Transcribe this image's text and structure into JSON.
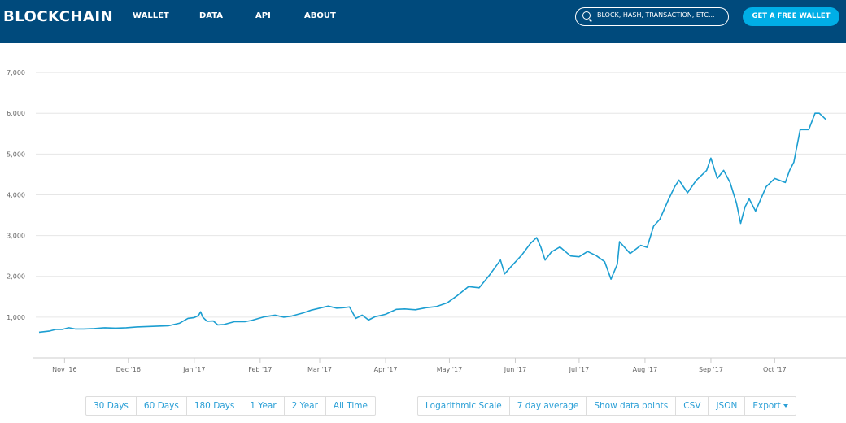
{
  "header": {
    "logo": "BLOCKCHAIN",
    "nav": [
      "WALLET",
      "DATA",
      "API",
      "ABOUT"
    ],
    "search_placeholder": "BLOCK, HASH, TRANSACTION, ETC...",
    "cta_label": "GET A FREE WALLET"
  },
  "colors": {
    "header_bg": "#004a7c",
    "accent": "#00aee6",
    "line": "#1c9ed1"
  },
  "range_buttons": [
    "30 Days",
    "60 Days",
    "180 Days",
    "1 Year",
    "2 Year",
    "All Time"
  ],
  "option_buttons": [
    "Logarithmic Scale",
    "7 day average",
    "Show data points",
    "CSV",
    "JSON",
    "Export"
  ],
  "chart_data": {
    "type": "line",
    "title": "",
    "xlabel": "",
    "ylabel": "",
    "ylim": [
      0,
      7500
    ],
    "yticks": [
      1000,
      2000,
      3000,
      4000,
      5000,
      6000,
      7000
    ],
    "ytick_labels": [
      "1,000",
      "2,000",
      "3,000",
      "4,000",
      "5,000",
      "6,000",
      "7,000"
    ],
    "xticks": [
      "2016-11-01",
      "2016-12-01",
      "2017-01-01",
      "2017-02-01",
      "2017-03-01",
      "2017-04-01",
      "2017-05-01",
      "2017-06-01",
      "2017-07-01",
      "2017-08-01",
      "2017-09-01",
      "2017-10-01"
    ],
    "xtick_labels": [
      "Nov '16",
      "Dec '16",
      "Jan '17",
      "Feb '17",
      "Mar '17",
      "Apr '17",
      "May '17",
      "Jun '17",
      "Jul '17",
      "Aug '17",
      "Sep '17",
      "Oct '17"
    ],
    "xlim": [
      "2016-10-20",
      "2017-11-02"
    ],
    "grid": true,
    "series": [
      {
        "points": [
          [
            "2016-10-20",
            630
          ],
          [
            "2016-10-25",
            660
          ],
          [
            "2016-10-28",
            700
          ],
          [
            "2016-10-31",
            700
          ],
          [
            "2016-11-03",
            740
          ],
          [
            "2016-11-06",
            710
          ],
          [
            "2016-11-10",
            710
          ],
          [
            "2016-11-15",
            720
          ],
          [
            "2016-11-20",
            740
          ],
          [
            "2016-11-25",
            730
          ],
          [
            "2016-11-30",
            740
          ],
          [
            "2016-12-05",
            760
          ],
          [
            "2016-12-10",
            770
          ],
          [
            "2016-12-15",
            780
          ],
          [
            "2016-12-20",
            790
          ],
          [
            "2016-12-25",
            850
          ],
          [
            "2016-12-29",
            970
          ],
          [
            "2017-01-01",
            990
          ],
          [
            "2017-01-03",
            1040
          ],
          [
            "2017-01-04",
            1130
          ],
          [
            "2017-01-05",
            1000
          ],
          [
            "2017-01-07",
            900
          ],
          [
            "2017-01-10",
            905
          ],
          [
            "2017-01-12",
            810
          ],
          [
            "2017-01-15",
            820
          ],
          [
            "2017-01-20",
            890
          ],
          [
            "2017-01-25",
            890
          ],
          [
            "2017-01-28",
            920
          ],
          [
            "2017-02-03",
            1010
          ],
          [
            "2017-02-08",
            1050
          ],
          [
            "2017-02-12",
            1000
          ],
          [
            "2017-02-16",
            1030
          ],
          [
            "2017-02-21",
            1100
          ],
          [
            "2017-02-25",
            1170
          ],
          [
            "2017-03-01",
            1220
          ],
          [
            "2017-03-05",
            1270
          ],
          [
            "2017-03-09",
            1220
          ],
          [
            "2017-03-12",
            1230
          ],
          [
            "2017-03-15",
            1250
          ],
          [
            "2017-03-18",
            970
          ],
          [
            "2017-03-21",
            1050
          ],
          [
            "2017-03-24",
            930
          ],
          [
            "2017-03-27",
            1010
          ],
          [
            "2017-04-01",
            1070
          ],
          [
            "2017-04-06",
            1190
          ],
          [
            "2017-04-10",
            1200
          ],
          [
            "2017-04-15",
            1180
          ],
          [
            "2017-04-20",
            1230
          ],
          [
            "2017-04-25",
            1260
          ],
          [
            "2017-04-30",
            1350
          ],
          [
            "2017-05-05",
            1540
          ],
          [
            "2017-05-10",
            1750
          ],
          [
            "2017-05-15",
            1720
          ],
          [
            "2017-05-20",
            2040
          ],
          [
            "2017-05-25",
            2400
          ],
          [
            "2017-05-27",
            2060
          ],
          [
            "2017-05-30",
            2240
          ],
          [
            "2017-06-04",
            2520
          ],
          [
            "2017-06-08",
            2800
          ],
          [
            "2017-06-11",
            2950
          ],
          [
            "2017-06-13",
            2720
          ],
          [
            "2017-06-15",
            2400
          ],
          [
            "2017-06-18",
            2600
          ],
          [
            "2017-06-22",
            2720
          ],
          [
            "2017-06-27",
            2500
          ],
          [
            "2017-07-01",
            2480
          ],
          [
            "2017-07-05",
            2610
          ],
          [
            "2017-07-09",
            2510
          ],
          [
            "2017-07-13",
            2360
          ],
          [
            "2017-07-16",
            1930
          ],
          [
            "2017-07-19",
            2300
          ],
          [
            "2017-07-20",
            2850
          ],
          [
            "2017-07-25",
            2560
          ],
          [
            "2017-07-30",
            2760
          ],
          [
            "2017-08-02",
            2710
          ],
          [
            "2017-08-05",
            3230
          ],
          [
            "2017-08-08",
            3400
          ],
          [
            "2017-08-12",
            3880
          ],
          [
            "2017-08-15",
            4200
          ],
          [
            "2017-08-17",
            4360
          ],
          [
            "2017-08-21",
            4050
          ],
          [
            "2017-08-25",
            4350
          ],
          [
            "2017-08-30",
            4600
          ],
          [
            "2017-09-01",
            4900
          ],
          [
            "2017-09-04",
            4400
          ],
          [
            "2017-09-07",
            4600
          ],
          [
            "2017-09-10",
            4300
          ],
          [
            "2017-09-13",
            3800
          ],
          [
            "2017-09-15",
            3300
          ],
          [
            "2017-09-17",
            3700
          ],
          [
            "2017-09-19",
            3900
          ],
          [
            "2017-09-22",
            3600
          ],
          [
            "2017-09-27",
            4200
          ],
          [
            "2017-10-01",
            4400
          ],
          [
            "2017-10-06",
            4300
          ],
          [
            "2017-10-08",
            4600
          ],
          [
            "2017-10-10",
            4800
          ],
          [
            "2017-10-13",
            5600
          ],
          [
            "2017-10-17",
            5600
          ],
          [
            "2017-10-20",
            6000
          ],
          [
            "2017-10-22",
            6000
          ],
          [
            "2017-10-25",
            5850
          ]
        ]
      }
    ]
  }
}
